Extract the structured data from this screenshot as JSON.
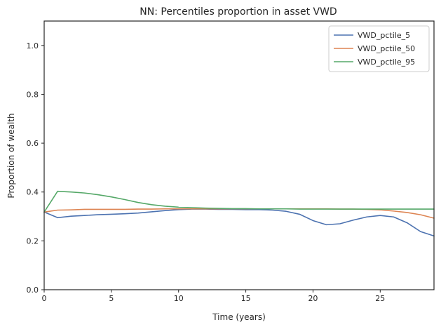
{
  "chart_data": {
    "type": "line",
    "title": "NN: Percentiles proportion in asset VWD",
    "xlabel": "Time (years)",
    "ylabel": "Proportion of wealth",
    "xlim": [
      0,
      29
    ],
    "ylim": [
      0.0,
      1.1
    ],
    "xticks": [
      0,
      5,
      10,
      15,
      20,
      25
    ],
    "xtick_labels": [
      "0",
      "5",
      "10",
      "15",
      "20",
      "25"
    ],
    "yticks": [
      0.0,
      0.2,
      0.4,
      0.6,
      0.8,
      1.0
    ],
    "ytick_labels": [
      "0.0",
      "0.2",
      "0.4",
      "0.6",
      "0.8",
      "1.0"
    ],
    "grid": false,
    "legend_position": "top-right",
    "x": [
      0,
      1,
      2,
      3,
      4,
      5,
      6,
      7,
      8,
      9,
      10,
      11,
      12,
      13,
      14,
      15,
      16,
      17,
      18,
      19,
      20,
      21,
      22,
      23,
      24,
      25,
      26,
      27,
      28,
      29
    ],
    "series": [
      {
        "name": "VWD_pctile_5",
        "color": "#4c72b0",
        "values": [
          0.318,
          0.295,
          0.301,
          0.304,
          0.307,
          0.309,
          0.311,
          0.314,
          0.319,
          0.324,
          0.328,
          0.33,
          0.33,
          0.329,
          0.329,
          0.328,
          0.328,
          0.326,
          0.321,
          0.309,
          0.283,
          0.266,
          0.27,
          0.285,
          0.298,
          0.304,
          0.298,
          0.274,
          0.238,
          0.22
        ]
      },
      {
        "name": "VWD_pctile_50",
        "color": "#dd8452",
        "values": [
          0.318,
          0.326,
          0.327,
          0.329,
          0.329,
          0.329,
          0.329,
          0.33,
          0.33,
          0.331,
          0.331,
          0.331,
          0.331,
          0.331,
          0.331,
          0.331,
          0.331,
          0.331,
          0.331,
          0.331,
          0.331,
          0.331,
          0.33,
          0.33,
          0.329,
          0.327,
          0.322,
          0.316,
          0.307,
          0.293
        ]
      },
      {
        "name": "VWD_pctile_95",
        "color": "#55a868",
        "values": [
          0.318,
          0.403,
          0.4,
          0.396,
          0.389,
          0.38,
          0.369,
          0.357,
          0.348,
          0.342,
          0.338,
          0.336,
          0.334,
          0.333,
          0.332,
          0.332,
          0.331,
          0.331,
          0.331,
          0.33,
          0.33,
          0.33,
          0.33,
          0.33,
          0.33,
          0.33,
          0.33,
          0.33,
          0.33,
          0.33
        ]
      }
    ]
  }
}
